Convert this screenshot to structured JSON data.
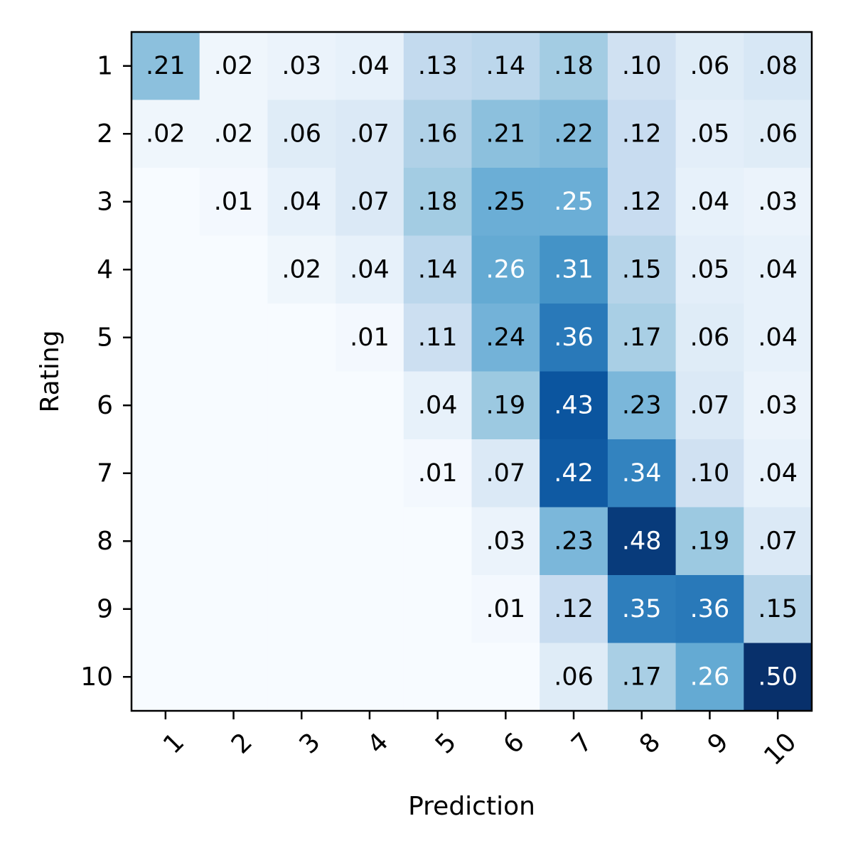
{
  "chart_data": {
    "type": "heatmap",
    "title": "",
    "xlabel": "Prediction",
    "ylabel": "Rating",
    "x_categories": [
      "1",
      "2",
      "3",
      "4",
      "5",
      "6",
      "7",
      "8",
      "9",
      "10"
    ],
    "y_categories": [
      "1",
      "2",
      "3",
      "4",
      "5",
      "6",
      "7",
      "8",
      "9",
      "10"
    ],
    "vmin": 0,
    "vmax": 0.5,
    "colormap": "Blues",
    "values": [
      [
        0.21,
        0.02,
        0.03,
        0.04,
        0.13,
        0.14,
        0.18,
        0.1,
        0.06,
        0.08
      ],
      [
        0.02,
        0.02,
        0.06,
        0.07,
        0.16,
        0.21,
        0.22,
        0.12,
        0.05,
        0.06
      ],
      [
        0.0,
        0.01,
        0.04,
        0.07,
        0.18,
        0.25,
        0.25,
        0.12,
        0.04,
        0.03
      ],
      [
        0.0,
        0.0,
        0.02,
        0.04,
        0.14,
        0.26,
        0.31,
        0.15,
        0.05,
        0.04
      ],
      [
        0.0,
        0.0,
        0.0,
        0.01,
        0.11,
        0.24,
        0.36,
        0.17,
        0.06,
        0.04
      ],
      [
        0.0,
        0.0,
        0.0,
        0.0,
        0.04,
        0.19,
        0.43,
        0.23,
        0.07,
        0.03
      ],
      [
        0.0,
        0.0,
        0.0,
        0.0,
        0.01,
        0.07,
        0.42,
        0.34,
        0.1,
        0.04
      ],
      [
        0.0,
        0.0,
        0.0,
        0.0,
        0.0,
        0.03,
        0.23,
        0.48,
        0.19,
        0.07
      ],
      [
        0.0,
        0.0,
        0.0,
        0.0,
        0.0,
        0.01,
        0.12,
        0.35,
        0.36,
        0.15
      ],
      [
        0.0,
        0.0,
        0.0,
        0.0,
        0.0,
        0.0,
        0.06,
        0.17,
        0.26,
        0.5
      ]
    ],
    "labels": [
      [
        ".21",
        ".02",
        ".03",
        ".04",
        ".13",
        ".14",
        ".18",
        ".10",
        ".06",
        ".08"
      ],
      [
        ".02",
        ".02",
        ".06",
        ".07",
        ".16",
        ".21",
        ".22",
        ".12",
        ".05",
        ".06"
      ],
      [
        "",
        ".01",
        ".04",
        ".07",
        ".18",
        ".25",
        ".25",
        ".12",
        ".04",
        ".03"
      ],
      [
        "",
        "",
        ".02",
        ".04",
        ".14",
        ".26",
        ".31",
        ".15",
        ".05",
        ".04"
      ],
      [
        "",
        "",
        "",
        ".01",
        ".11",
        ".24",
        ".36",
        ".17",
        ".06",
        ".04"
      ],
      [
        "",
        "",
        "",
        "",
        ".04",
        ".19",
        ".43",
        ".23",
        ".07",
        ".03"
      ],
      [
        "",
        "",
        "",
        "",
        ".01",
        ".07",
        ".42",
        ".34",
        ".10",
        ".04"
      ],
      [
        "",
        "",
        "",
        "",
        "",
        ".03",
        ".23",
        ".48",
        ".19",
        ".07"
      ],
      [
        "",
        "",
        "",
        "",
        "",
        ".01",
        ".12",
        ".35",
        ".36",
        ".15"
      ],
      [
        "",
        "",
        "",
        "",
        "",
        "",
        ".06",
        ".17",
        ".26",
        ".50"
      ]
    ],
    "light_text_cells": [
      [
        2,
        6
      ],
      [
        3,
        5
      ],
      [
        3,
        6
      ],
      [
        4,
        6
      ],
      [
        5,
        6
      ],
      [
        6,
        6
      ],
      [
        6,
        7
      ],
      [
        7,
        7
      ],
      [
        8,
        7
      ],
      [
        8,
        8
      ],
      [
        9,
        8
      ],
      [
        9,
        9
      ]
    ],
    "dark_text_color": "#000000",
    "light_text_color": "#ffffff",
    "grid": false
  }
}
